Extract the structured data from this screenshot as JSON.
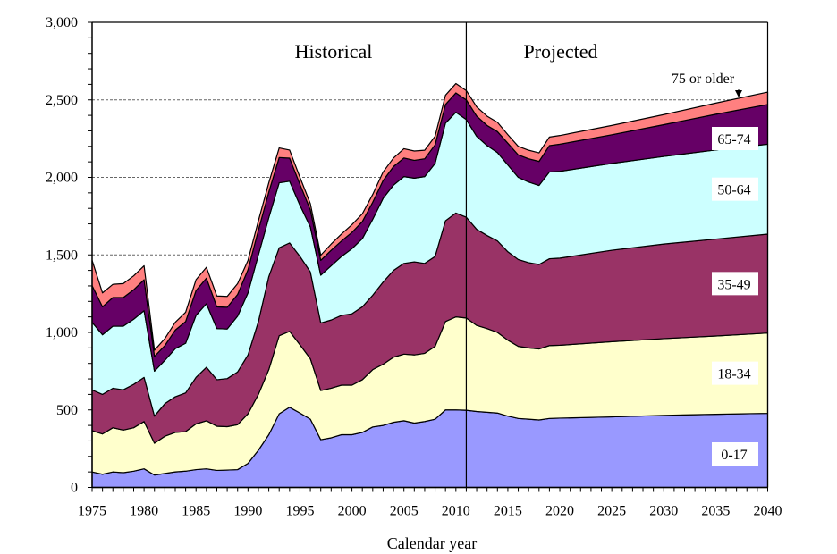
{
  "chart_data": {
    "type": "area",
    "stacked": true,
    "title": "",
    "xlabel": "Calendar year",
    "ylabel": "",
    "xlim": [
      1975,
      2040
    ],
    "ylim": [
      0,
      3000
    ],
    "yticks": [
      0,
      500,
      1000,
      1500,
      2000,
      2500,
      3000
    ],
    "ytick_labels": [
      "0",
      "500",
      "1,000",
      "1,500",
      "2,000",
      "2,500",
      "3,000"
    ],
    "xticks": [
      1975,
      1980,
      1985,
      1990,
      1995,
      2000,
      2005,
      2010,
      2015,
      2020,
      2025,
      2030,
      2035,
      2040
    ],
    "xtick_labels": [
      "1975",
      "1980",
      "1985",
      "1990",
      "1995",
      "2000",
      "2005",
      "2010",
      "2015",
      "2020",
      "2025",
      "2030",
      "2035",
      "2040"
    ],
    "grid": "horizontal dashed at 1,500 / 2,000 / 2,500",
    "divider_year": 2011,
    "annotations": [
      {
        "text": "Historical",
        "position": "upper-left of divider"
      },
      {
        "text": "Projected",
        "position": "upper-right of divider"
      }
    ],
    "x": [
      1975,
      1976,
      1977,
      1978,
      1979,
      1980,
      1981,
      1982,
      1983,
      1984,
      1985,
      1986,
      1987,
      1988,
      1989,
      1990,
      1991,
      1992,
      1993,
      1994,
      1995,
      1996,
      1997,
      1998,
      1999,
      2000,
      2001,
      2002,
      2003,
      2004,
      2005,
      2006,
      2007,
      2008,
      2009,
      2010,
      2011,
      2012,
      2013,
      2014,
      2015,
      2016,
      2017,
      2018,
      2019,
      2020,
      2025,
      2030,
      2035,
      2040
    ],
    "series": [
      {
        "name": "0-17",
        "color": "#9999ff",
        "values": [
          100,
          85,
          100,
          95,
          105,
          120,
          80,
          90,
          100,
          105,
          115,
          120,
          110,
          112,
          115,
          155,
          240,
          340,
          475,
          517,
          480,
          440,
          308,
          320,
          340,
          340,
          355,
          390,
          400,
          420,
          430,
          415,
          425,
          440,
          500,
          500,
          498,
          490,
          485,
          480,
          460,
          445,
          440,
          435,
          445,
          447,
          455,
          465,
          472,
          478
        ]
      },
      {
        "name": "18-34",
        "color": "#ffffcc",
        "values": [
          266,
          260,
          285,
          275,
          280,
          305,
          205,
          240,
          255,
          255,
          295,
          310,
          285,
          280,
          290,
          320,
          360,
          420,
          504,
          490,
          440,
          390,
          317,
          320,
          320,
          320,
          340,
          370,
          395,
          420,
          430,
          440,
          440,
          470,
          570,
          600,
          595,
          555,
          540,
          520,
          490,
          465,
          460,
          458,
          470,
          470,
          485,
          495,
          505,
          518
        ]
      },
      {
        "name": "35-49",
        "color": "#993366",
        "values": [
          263,
          255,
          255,
          260,
          280,
          285,
          175,
          210,
          230,
          250,
          300,
          345,
          300,
          310,
          340,
          380,
          470,
          600,
          567,
          570,
          570,
          560,
          436,
          440,
          450,
          460,
          470,
          480,
          530,
          560,
          585,
          600,
          580,
          580,
          650,
          670,
          650,
          620,
          600,
          590,
          570,
          560,
          550,
          545,
          560,
          562,
          590,
          610,
          625,
          638
        ]
      },
      {
        "name": "50-64",
        "color": "#ccffff",
        "values": [
          436,
          385,
          400,
          410,
          420,
          430,
          290,
          280,
          310,
          320,
          400,
          410,
          330,
          320,
          360,
          400,
          430,
          380,
          419,
          398,
          330,
          290,
          308,
          350,
          380,
          420,
          440,
          490,
          540,
          550,
          560,
          540,
          560,
          600,
          630,
          650,
          630,
          600,
          580,
          570,
          560,
          530,
          520,
          510,
          560,
          560,
          560,
          565,
          575,
          580
        ]
      },
      {
        "name": "65-74",
        "color": "#660066",
        "values": [
          237,
          180,
          185,
          185,
          190,
          200,
          95,
          95,
          120,
          140,
          160,
          165,
          140,
          140,
          140,
          150,
          160,
          165,
          163,
          149,
          135,
          110,
          96,
          100,
          100,
          105,
          110,
          110,
          115,
          120,
          120,
          115,
          115,
          120,
          120,
          125,
          127,
          130,
          130,
          135,
          140,
          145,
          150,
          155,
          170,
          175,
          185,
          205,
          230,
          256
        ]
      },
      {
        "name": "75 or older",
        "color": "#ff8080",
        "values": [
          163,
          90,
          85,
          90,
          90,
          90,
          40,
          45,
          50,
          60,
          70,
          70,
          70,
          70,
          70,
          60,
          60,
          60,
          62,
          52,
          45,
          40,
          33,
          40,
          45,
          50,
          50,
          50,
          55,
          55,
          60,
          60,
          55,
          55,
          60,
          60,
          60,
          60,
          60,
          60,
          55,
          55,
          55,
          55,
          55,
          56,
          60,
          65,
          72,
          80
        ]
      }
    ]
  }
}
